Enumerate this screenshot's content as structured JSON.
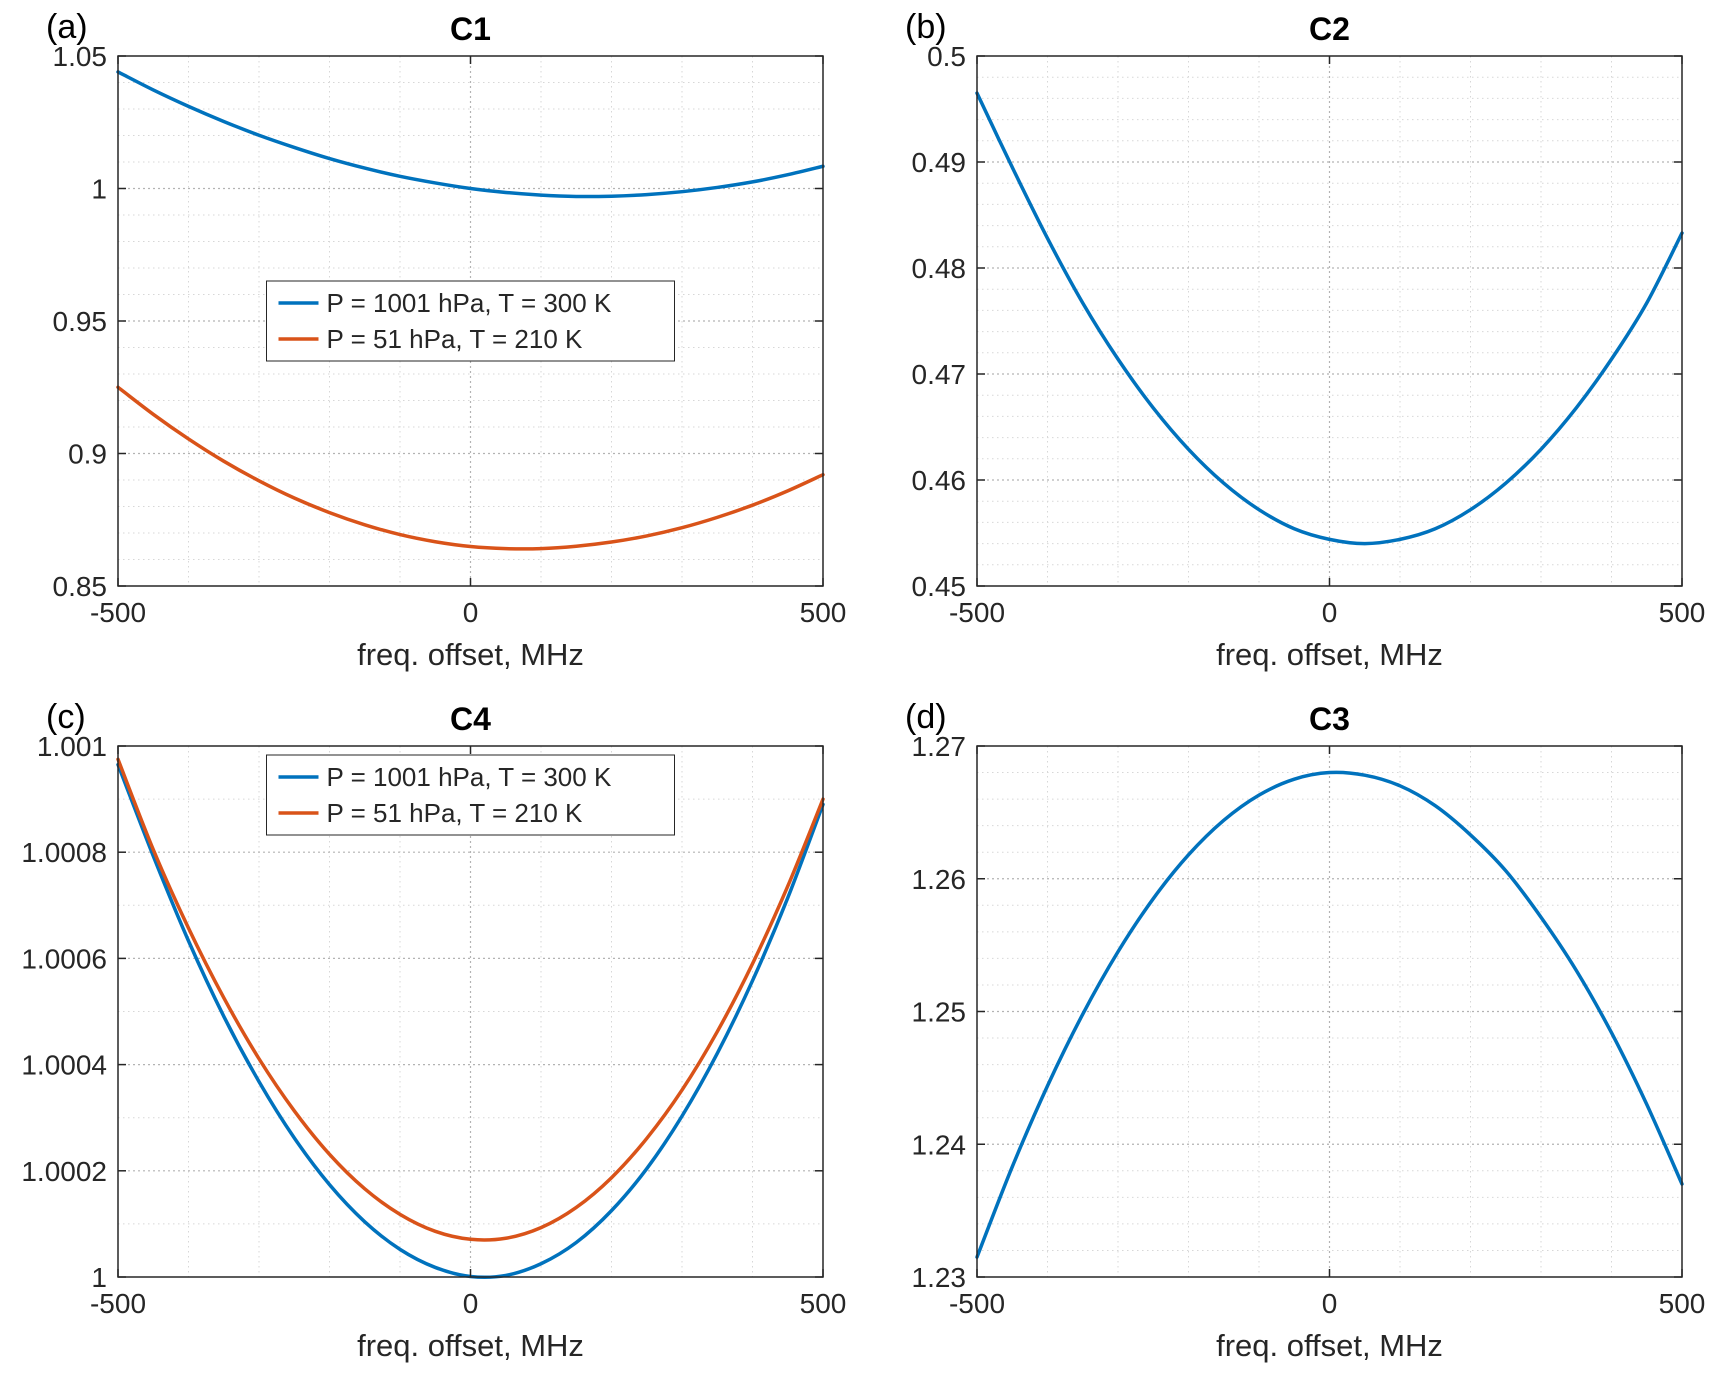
{
  "figure": {
    "background": "#ffffff",
    "colors": {
      "blue": "#0072BD",
      "orange": "#D95319",
      "grid_major": "#b3b3b3",
      "grid_minor": "#d7d7d7",
      "axis": "#262626",
      "title": "#000000"
    },
    "xlabel": "freq. offset, MHz"
  },
  "chart_data": [
    {
      "type": "line",
      "panel_label": "(a)",
      "title": "C1",
      "xlabel": "freq. offset, MHz",
      "xlim": [
        -500,
        500
      ],
      "ylim": [
        0.85,
        1.05
      ],
      "xticks": [
        -500,
        0,
        500
      ],
      "xtick_labels": [
        "-500",
        "0",
        "500"
      ],
      "yticks": [
        0.85,
        0.9,
        0.95,
        1,
        1.05
      ],
      "ytick_labels": [
        "0.85",
        "0.9",
        "0.95",
        "1",
        "1.05"
      ],
      "xgrid_minor": 100,
      "ygrid_minor": 0.01,
      "grid": true,
      "legend": {
        "visible": true,
        "position": "center",
        "entries": [
          "P = 1001 hPa, T = 300 K",
          "P = 51 hPa, T = 210 K"
        ]
      },
      "x": [
        -500,
        -450,
        -400,
        -350,
        -300,
        -250,
        -200,
        -150,
        -100,
        -50,
        0,
        50,
        100,
        150,
        200,
        250,
        300,
        350,
        400,
        450,
        500
      ],
      "series": [
        {
          "name": "P = 1001 hPa, T = 300 K",
          "color": "blue",
          "values": [
            1.044,
            1.0372,
            1.031,
            1.0253,
            1.0201,
            1.0155,
            1.0113,
            1.0077,
            1.0046,
            1.0021,
            1.0,
            0.9985,
            0.9975,
            0.997,
            0.9971,
            0.9977,
            0.9988,
            1.0004,
            1.0025,
            1.0052,
            1.0084
          ]
        },
        {
          "name": "P = 51 hPa, T = 210 K",
          "color": "orange",
          "values": [
            0.925,
            0.9148,
            0.9055,
            0.8971,
            0.8897,
            0.8832,
            0.8777,
            0.8731,
            0.8694,
            0.8667,
            0.8649,
            0.8641,
            0.8641,
            0.865,
            0.8666,
            0.8689,
            0.872,
            0.8759,
            0.8805,
            0.8859,
            0.892
          ]
        }
      ]
    },
    {
      "type": "line",
      "panel_label": "(b)",
      "title": "C2",
      "xlabel": "freq. offset, MHz",
      "xlim": [
        -500,
        500
      ],
      "ylim": [
        0.45,
        0.5
      ],
      "xticks": [
        -500,
        0,
        500
      ],
      "xtick_labels": [
        "-500",
        "0",
        "500"
      ],
      "yticks": [
        0.45,
        0.46,
        0.47,
        0.48,
        0.49,
        0.5
      ],
      "ytick_labels": [
        "0.45",
        "0.46",
        "0.47",
        "0.48",
        "0.49",
        "0.5"
      ],
      "xgrid_minor": 100,
      "ygrid_minor": 0.002,
      "grid": true,
      "legend": {
        "visible": false,
        "position": "none",
        "entries": []
      },
      "x": [
        -500,
        -450,
        -400,
        -350,
        -300,
        -250,
        -200,
        -150,
        -100,
        -50,
        0,
        50,
        100,
        150,
        200,
        250,
        300,
        350,
        400,
        450,
        500
      ],
      "series": [
        {
          "name": "C2",
          "color": "blue",
          "values": [
            0.4965,
            0.4895,
            0.4828,
            0.4767,
            0.4714,
            0.4668,
            0.4629,
            0.4597,
            0.4572,
            0.4554,
            0.4544,
            0.454,
            0.4544,
            0.4554,
            0.4572,
            0.4597,
            0.4629,
            0.4668,
            0.4714,
            0.4767,
            0.4833
          ]
        }
      ]
    },
    {
      "type": "line",
      "panel_label": "(c)",
      "title": "C4",
      "xlabel": "freq. offset, MHz",
      "xlim": [
        -500,
        500
      ],
      "ylim": [
        1,
        1.001
      ],
      "xticks": [
        -500,
        0,
        500
      ],
      "xtick_labels": [
        "-500",
        "0",
        "500"
      ],
      "yticks": [
        1,
        1.0002,
        1.0004,
        1.0006,
        1.0008,
        1.001
      ],
      "ytick_labels": [
        "1",
        "1.0002",
        "1.0004",
        "1.0006",
        "1.0008",
        "1.001"
      ],
      "xgrid_minor": 100,
      "ygrid_minor": 0.0001,
      "grid": true,
      "legend": {
        "visible": true,
        "position": "north",
        "entries": [
          "P = 1001 hPa, T = 300 K",
          "P = 51 hPa, T = 210 K"
        ]
      },
      "x": [
        -500,
        -450,
        -400,
        -350,
        -300,
        -250,
        -200,
        -150,
        -100,
        -50,
        0,
        50,
        100,
        150,
        200,
        250,
        300,
        350,
        400,
        450,
        500
      ],
      "series": [
        {
          "name": "P = 1001 hPa, T = 300 K",
          "color": "blue",
          "values": [
            1.000965,
            1.000793,
            1.000633,
            1.000491,
            1.000368,
            1.000262,
            1.000174,
            1.000104,
            1.000052,
            1.000018,
            1.000001,
            1.000003,
            1.000025,
            1.000065,
            1.000125,
            1.000204,
            1.000303,
            1.000421,
            1.000558,
            1.000714,
            1.00089
          ]
        },
        {
          "name": "P = 51 hPa, T = 210 K",
          "color": "orange",
          "values": [
            1.000975,
            1.000805,
            1.000657,
            1.000526,
            1.000411,
            1.000313,
            1.000231,
            1.000166,
            1.000118,
            1.000086,
            1.000071,
            1.000073,
            1.000093,
            1.000131,
            1.000187,
            1.000261,
            1.000352,
            1.000462,
            1.00059,
            1.000736,
            1.0009
          ]
        }
      ]
    },
    {
      "type": "line",
      "panel_label": "(d)",
      "title": "C3",
      "xlabel": "freq. offset, MHz",
      "xlim": [
        -500,
        500
      ],
      "ylim": [
        1.23,
        1.27
      ],
      "xticks": [
        -500,
        0,
        500
      ],
      "xtick_labels": [
        "-500",
        "0",
        "500"
      ],
      "yticks": [
        1.23,
        1.24,
        1.25,
        1.26,
        1.27
      ],
      "ytick_labels": [
        "1.23",
        "1.24",
        "1.25",
        "1.26",
        "1.27"
      ],
      "xgrid_minor": 100,
      "ygrid_minor": 0.002,
      "grid": true,
      "legend": {
        "visible": false,
        "position": "none",
        "entries": []
      },
      "x": [
        -500,
        -450,
        -400,
        -350,
        -300,
        -250,
        -200,
        -150,
        -100,
        -50,
        0,
        50,
        100,
        150,
        200,
        250,
        300,
        350,
        400,
        450,
        500
      ],
      "series": [
        {
          "name": "C3",
          "color": "blue",
          "values": [
            1.2315,
            1.2383,
            1.2444,
            1.2498,
            1.2545,
            1.2585,
            1.2618,
            1.2644,
            1.2663,
            1.2675,
            1.268,
            1.2678,
            1.267,
            1.2655,
            1.2633,
            1.2606,
            1.2571,
            1.2531,
            1.2484,
            1.243,
            1.237
          ]
        }
      ]
    }
  ]
}
